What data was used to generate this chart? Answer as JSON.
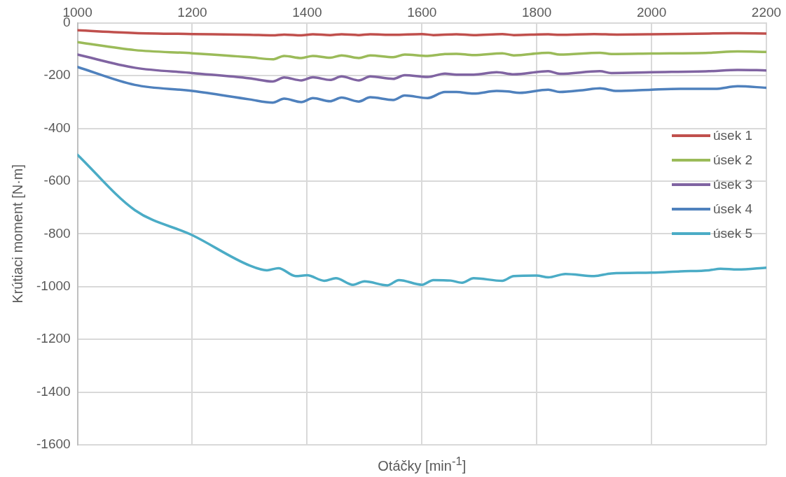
{
  "chart_data": {
    "type": "line",
    "xlabel": "Otáčky [min$^{-1}$]",
    "ylabel": "Krútiaci moment [N·m]",
    "xlim": [
      1000,
      2200
    ],
    "xticks": [
      1000,
      1200,
      1400,
      1600,
      1800,
      2000,
      2200
    ],
    "ylim": [
      -1600,
      0
    ],
    "yticks": [
      -1600,
      -1400,
      -1200,
      -1000,
      -800,
      -600,
      -400,
      -200,
      0
    ],
    "grid": true,
    "legend": "right",
    "marker": "none",
    "line_style": "solid",
    "series": [
      {
        "name": "úsek 1",
        "color": "#c0504d",
        "x": [
          1000,
          1100,
          1200,
          1300,
          1340,
          1360,
          1390,
          1410,
          1440,
          1460,
          1490,
          1510,
          1550,
          1600,
          1620,
          1660,
          1690,
          1740,
          1760,
          1820,
          1840,
          1900,
          1940,
          2000,
          2100,
          2150,
          2200
        ],
        "values": [
          -28,
          -38,
          -42,
          -45,
          -47,
          -44,
          -47,
          -43,
          -46,
          -43,
          -46,
          -43,
          -45,
          -42,
          -46,
          -43,
          -46,
          -42,
          -46,
          -43,
          -45,
          -42,
          -44,
          -43,
          -40,
          -39,
          -40
        ]
      },
      {
        "name": "úsek 2",
        "color": "#9bbb59",
        "x": [
          1000,
          1100,
          1200,
          1300,
          1340,
          1360,
          1390,
          1410,
          1440,
          1460,
          1490,
          1510,
          1550,
          1570,
          1610,
          1640,
          1660,
          1690,
          1740,
          1760,
          1820,
          1840,
          1910,
          1930,
          2000,
          2100,
          2150,
          2200
        ],
        "values": [
          -73,
          -103,
          -115,
          -130,
          -138,
          -125,
          -133,
          -125,
          -132,
          -123,
          -133,
          -123,
          -130,
          -120,
          -125,
          -118,
          -117,
          -122,
          -115,
          -123,
          -113,
          -120,
          -113,
          -118,
          -116,
          -113,
          -108,
          -110
        ]
      },
      {
        "name": "úsek 3",
        "color": "#8064a2",
        "x": [
          1000,
          1100,
          1200,
          1300,
          1340,
          1360,
          1390,
          1410,
          1440,
          1460,
          1490,
          1510,
          1550,
          1570,
          1610,
          1640,
          1660,
          1690,
          1730,
          1760,
          1820,
          1840,
          1910,
          1930,
          2000,
          2100,
          2150,
          2200
        ],
        "values": [
          -120,
          -170,
          -190,
          -210,
          -222,
          -207,
          -218,
          -206,
          -216,
          -203,
          -218,
          -203,
          -212,
          -198,
          -205,
          -192,
          -196,
          -196,
          -187,
          -195,
          -183,
          -193,
          -183,
          -190,
          -187,
          -183,
          -178,
          -180
        ]
      },
      {
        "name": "úsek 4",
        "color": "#4f81bd",
        "x": [
          1000,
          1100,
          1200,
          1300,
          1340,
          1360,
          1390,
          1410,
          1440,
          1460,
          1490,
          1510,
          1550,
          1570,
          1610,
          1640,
          1660,
          1690,
          1730,
          1750,
          1770,
          1820,
          1840,
          1880,
          1910,
          1940,
          2000,
          2050,
          2110,
          2150,
          2200
        ],
        "values": [
          -167,
          -235,
          -258,
          -290,
          -302,
          -287,
          -300,
          -285,
          -297,
          -283,
          -298,
          -282,
          -292,
          -275,
          -285,
          -262,
          -262,
          -268,
          -258,
          -260,
          -265,
          -253,
          -262,
          -255,
          -248,
          -258,
          -253,
          -250,
          -250,
          -240,
          -246
        ]
      },
      {
        "name": "úsek 5",
        "color": "#4bacc6",
        "x": [
          1000,
          1100,
          1200,
          1300,
          1330,
          1350,
          1380,
          1400,
          1430,
          1450,
          1480,
          1500,
          1540,
          1560,
          1600,
          1620,
          1650,
          1670,
          1690,
          1740,
          1760,
          1800,
          1820,
          1850,
          1900,
          1930,
          2000,
          2050,
          2100,
          2120,
          2150,
          2200
        ],
        "values": [
          -500,
          -710,
          -805,
          -920,
          -938,
          -930,
          -960,
          -957,
          -978,
          -968,
          -993,
          -980,
          -995,
          -975,
          -993,
          -975,
          -977,
          -985,
          -968,
          -978,
          -960,
          -958,
          -965,
          -952,
          -960,
          -950,
          -947,
          -942,
          -938,
          -932,
          -935,
          -928
        ]
      }
    ]
  }
}
